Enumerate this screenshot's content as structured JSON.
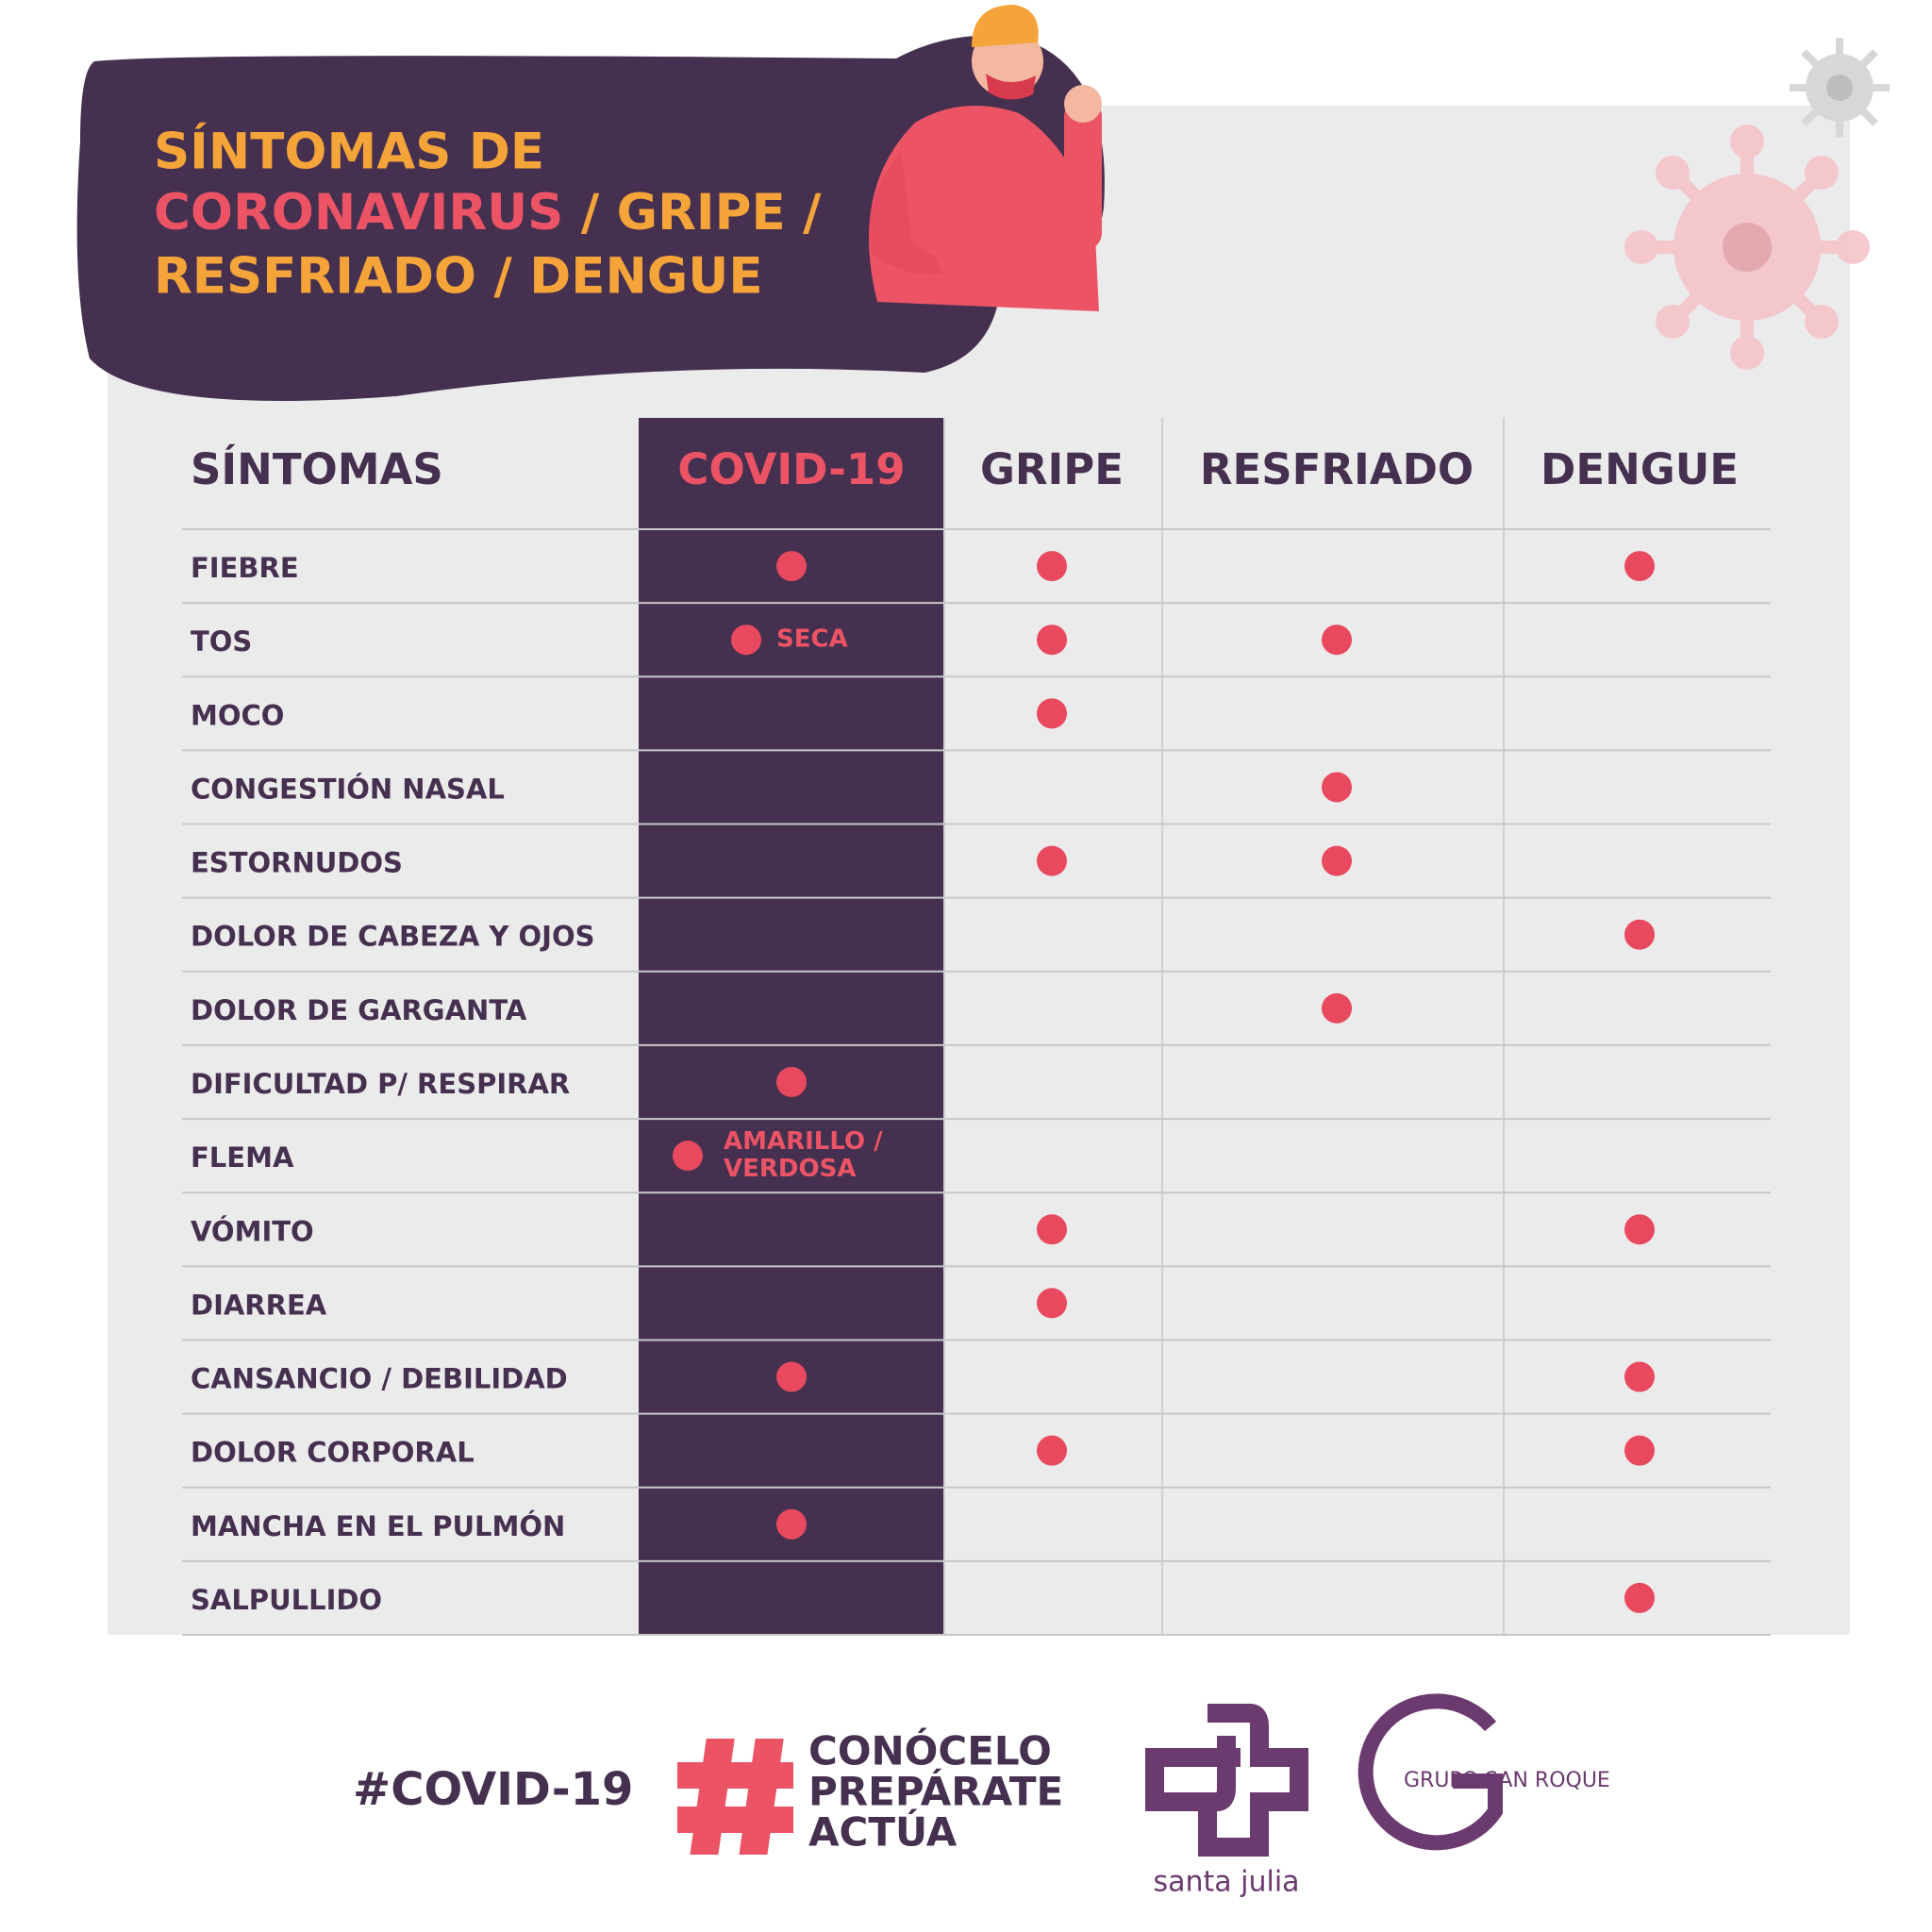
{
  "title": {
    "line1": "SÍNTOMAS DE",
    "line2a": "CORONAVIRUS",
    "line2b": "/ GRIPE /",
    "line3": "RESFRIADO / DENGUE"
  },
  "table": {
    "headers": [
      "SÍNTOMAS",
      "COVID-19",
      "GRIPE",
      "RESFRIADO",
      "DENGUE"
    ],
    "rows": [
      {
        "symptom": "FIEBRE",
        "cells": [
          true,
          true,
          false,
          true
        ]
      },
      {
        "symptom": "TOS",
        "cells": [
          true,
          true,
          true,
          false
        ],
        "covid_note": [
          "SECA"
        ]
      },
      {
        "symptom": "MOCO",
        "cells": [
          false,
          true,
          false,
          false
        ]
      },
      {
        "symptom": "CONGESTIÓN NASAL",
        "cells": [
          false,
          false,
          true,
          false
        ]
      },
      {
        "symptom": "ESTORNUDOS",
        "cells": [
          false,
          true,
          true,
          false
        ]
      },
      {
        "symptom": "DOLOR DE CABEZA Y OJOS",
        "cells": [
          false,
          false,
          false,
          true
        ]
      },
      {
        "symptom": "DOLOR DE GARGANTA",
        "cells": [
          false,
          false,
          true,
          false
        ]
      },
      {
        "symptom": "DIFICULTAD P/ RESPIRAR",
        "cells": [
          true,
          false,
          false,
          false
        ]
      },
      {
        "symptom": "FLEMA",
        "cells": [
          true,
          false,
          false,
          false
        ],
        "covid_note": [
          "AMARILLO /",
          "VERDOSA"
        ]
      },
      {
        "symptom": "VÓMITO",
        "cells": [
          false,
          true,
          false,
          true
        ]
      },
      {
        "symptom": "DIARREA",
        "cells": [
          false,
          true,
          false,
          false
        ]
      },
      {
        "symptom": "CANSANCIO / DEBILIDAD",
        "cells": [
          true,
          false,
          false,
          true
        ]
      },
      {
        "symptom": "DOLOR CORPORAL",
        "cells": [
          false,
          true,
          false,
          true
        ]
      },
      {
        "symptom": "MANCHA EN EL PULMÓN",
        "cells": [
          true,
          false,
          false,
          false
        ]
      },
      {
        "symptom": "SALPULLIDO",
        "cells": [
          false,
          false,
          false,
          true
        ]
      }
    ]
  },
  "footer": {
    "hashtag": "#COVID-19",
    "slogan": [
      "CONÓCELO",
      "PREPÁRATE",
      "ACTÚA"
    ],
    "logo1": "santa julia",
    "logo2a": "GRUPO",
    "logo2b": "SAN ROQUE"
  }
}
